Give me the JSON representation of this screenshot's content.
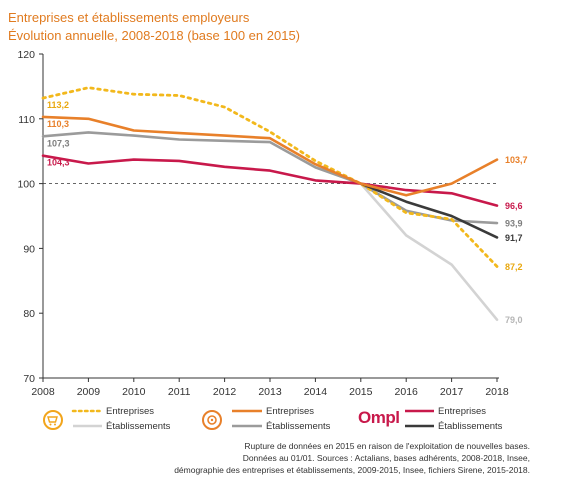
{
  "titles": {
    "line1": "Entreprises et établissements employeurs",
    "line2": "Évolution annuelle, 2008-2018 (base 100 en 2015)"
  },
  "chart_data": {
    "type": "line",
    "x": [
      2008,
      2009,
      2010,
      2011,
      2012,
      2013,
      2014,
      2015,
      2016,
      2017,
      2018
    ],
    "xlim": [
      2008,
      2018
    ],
    "ylim": [
      70,
      120
    ],
    "yticks": [
      70,
      80,
      90,
      100,
      110,
      120
    ],
    "reference_line": 100,
    "series": [
      {
        "group": "ocre",
        "name": "Entreprises",
        "style": "dotted",
        "color": "#f2b81c",
        "values": [
          113.2,
          114.8,
          113.8,
          113.6,
          111.8,
          108.0,
          103.5,
          100.0,
          95.5,
          94.5,
          87.2
        ],
        "end_label": "87,2",
        "start_label": "113,2"
      },
      {
        "group": "ocre",
        "name": "Établissements",
        "style": "solid",
        "color": "#d3d3d3",
        "values": [
          null,
          null,
          null,
          null,
          null,
          null,
          null,
          100.0,
          92.0,
          87.5,
          79.0
        ],
        "end_label": "79,0"
      },
      {
        "group": "orange",
        "name": "Entreprises",
        "style": "solid",
        "color": "#e8802a",
        "values": [
          110.3,
          110.0,
          108.2,
          107.8,
          107.4,
          107.0,
          103.0,
          100.0,
          98.2,
          100.0,
          103.7
        ],
        "end_label": "103,7",
        "start_label": "110,3"
      },
      {
        "group": "orange",
        "name": "Établissements",
        "style": "solid",
        "color": "#9b9b9b",
        "values": [
          107.3,
          107.9,
          107.4,
          106.8,
          106.6,
          106.4,
          102.5,
          100.0,
          95.8,
          94.3,
          93.9
        ],
        "end_label": "93,9",
        "start_label": "107,3"
      },
      {
        "group": "ompl",
        "name": "Entreprises",
        "style": "solid",
        "color": "#c8194b",
        "values": [
          104.3,
          103.1,
          103.7,
          103.5,
          102.6,
          102.0,
          100.5,
          100.0,
          99.0,
          98.5,
          96.6
        ],
        "end_label": "96,6",
        "start_label": "104,3"
      },
      {
        "group": "ompl",
        "name": "Établissements",
        "style": "solid",
        "color": "#3a3a3a",
        "values": [
          null,
          null,
          null,
          null,
          null,
          null,
          null,
          100.0,
          97.2,
          95.0,
          91.7
        ],
        "end_label": "91,7"
      }
    ]
  },
  "legend": {
    "groups": [
      {
        "entries": [
          "Entreprises",
          "Établissements"
        ]
      },
      {
        "entries": [
          "Entreprises",
          "Établissements"
        ]
      },
      {
        "logo": "Ompl",
        "entries": [
          "Entreprises",
          "Établissements"
        ]
      }
    ]
  },
  "notes": {
    "line1": "Rupture de données en 2015 en raison de l'exploitation de nouvelles bases.",
    "line2": "Données au 01/01. Sources : Actalians, bases adhérents, 2008-2018, Insee,",
    "line3": "démographie des entreprises et établissements, 2009-2015, Insee, fichiers Sirene, 2015-2018."
  },
  "colors": {
    "title": "#e07b20",
    "ocre_logo": "#f2a51c",
    "orange_logo": "#e8802a",
    "ompl_logo": "#c8194b"
  },
  "icons": {
    "ocre_logo": "tooth-cart-logo-icon",
    "orange_logo": "tooth-gear-logo-icon"
  }
}
